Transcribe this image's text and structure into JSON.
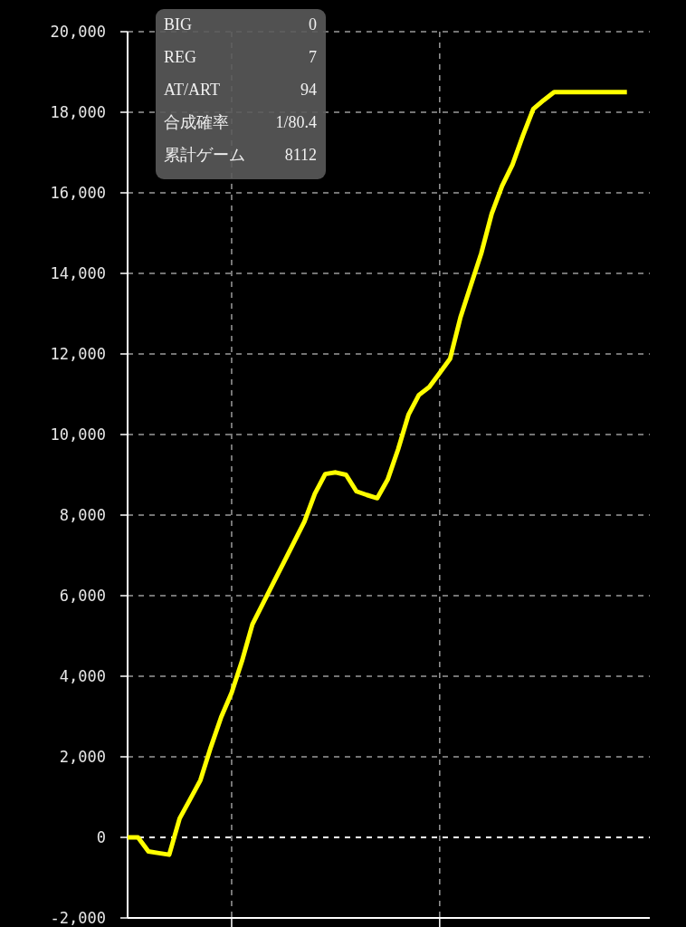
{
  "chart_data": {
    "type": "line",
    "categories": [
      null,
      null,
      null,
      null,
      null,
      null,
      null,
      null,
      null,
      null,
      null,
      null,
      null,
      null,
      null,
      null,
      null,
      null,
      null,
      null,
      null,
      null,
      null,
      null,
      null,
      null,
      null,
      null,
      null,
      null,
      null,
      null,
      null,
      null,
      null,
      null,
      null,
      null,
      null,
      null,
      null,
      null,
      null,
      null,
      null,
      null,
      null,
      null,
      null
    ],
    "series": [
      {
        "color": "#ffff00",
        "values": [
          0,
          0,
          -350,
          -390,
          -430,
          470,
          940,
          1420,
          2240,
          2990,
          3590,
          4380,
          5290,
          5800,
          6310,
          6820,
          7330,
          7840,
          8530,
          9020,
          9060,
          9000,
          8590,
          8500,
          8420,
          8880,
          9630,
          10490,
          10980,
          11180,
          11530,
          11880,
          12910,
          13710,
          14500,
          15480,
          16170,
          16700,
          17420,
          18080,
          18300,
          18500,
          18500,
          18500,
          18500,
          18500,
          18500,
          18500,
          18500
        ]
      }
    ],
    "ylim": [
      -2000,
      20000
    ],
    "yticks": [
      {
        "value": -2000,
        "label": "-2,000"
      },
      0,
      {
        "value": 2000,
        "label": "2,000"
      },
      {
        "value": 4000,
        "label": "4,000"
      },
      {
        "value": 6000,
        "label": "6,000"
      },
      {
        "value": 8000,
        "label": "8,000"
      },
      {
        "value": 10000,
        "label": "10,000"
      },
      {
        "value": 12000,
        "label": "12,000"
      },
      {
        "value": 14000,
        "label": "14,000"
      },
      {
        "value": 16000,
        "label": "16,000"
      },
      {
        "value": 18000,
        "label": "18,000"
      },
      {
        "value": 20000,
        "label": "20,000"
      }
    ],
    "grid": true,
    "ref_lines": [
      {
        "axis": "y",
        "value": 0,
        "color": "#ffffff",
        "line_style": "dashed"
      }
    ],
    "annotations": [
      "BIG",
      "0",
      "REG",
      "7",
      "AT/ART",
      "94",
      "合成確率",
      "1/80.4",
      "累計ゲーム",
      "8112"
    ]
  }
}
